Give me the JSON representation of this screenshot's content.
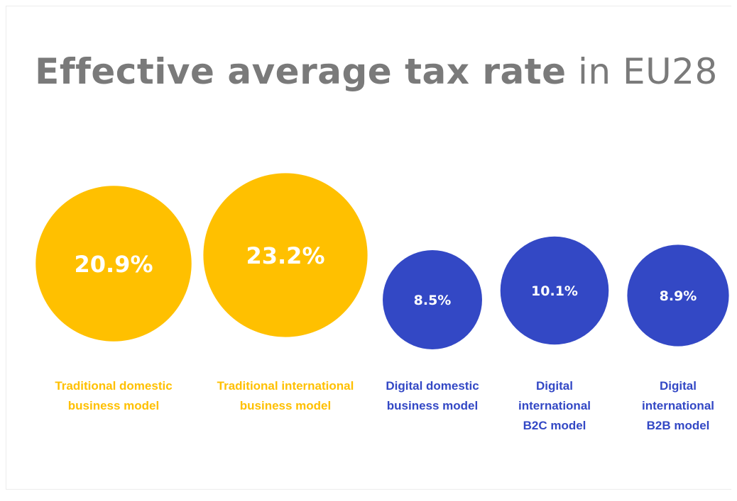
{
  "title": {
    "bold_part": "Effective average tax rate",
    "light_part": "in EU28"
  },
  "colors": {
    "traditional": "#ffc000",
    "digital": "#3348c5",
    "title": "#7a7a7a",
    "value_text": "#ffffff"
  },
  "chart_data": {
    "type": "bubble",
    "title": "Effective average tax rate in EU28",
    "unit": "%",
    "categories": [
      {
        "label_lines": [
          "Traditional domestic",
          "business model"
        ],
        "value": 20.9,
        "value_label": "20.9%",
        "group": "traditional"
      },
      {
        "label_lines": [
          "Traditional international",
          "business model"
        ],
        "value": 23.2,
        "value_label": "23.2%",
        "group": "traditional"
      },
      {
        "label_lines": [
          "Digital domestic",
          "business model"
        ],
        "value": 8.5,
        "value_label": "8.5%",
        "group": "digital"
      },
      {
        "label_lines": [
          "Digital",
          "international",
          "B2C model"
        ],
        "value": 10.1,
        "value_label": "10.1%",
        "group": "digital"
      },
      {
        "label_lines": [
          "Digital",
          "international",
          "B2B model"
        ],
        "value": 8.9,
        "value_label": "8.9%",
        "group": "digital"
      }
    ]
  }
}
